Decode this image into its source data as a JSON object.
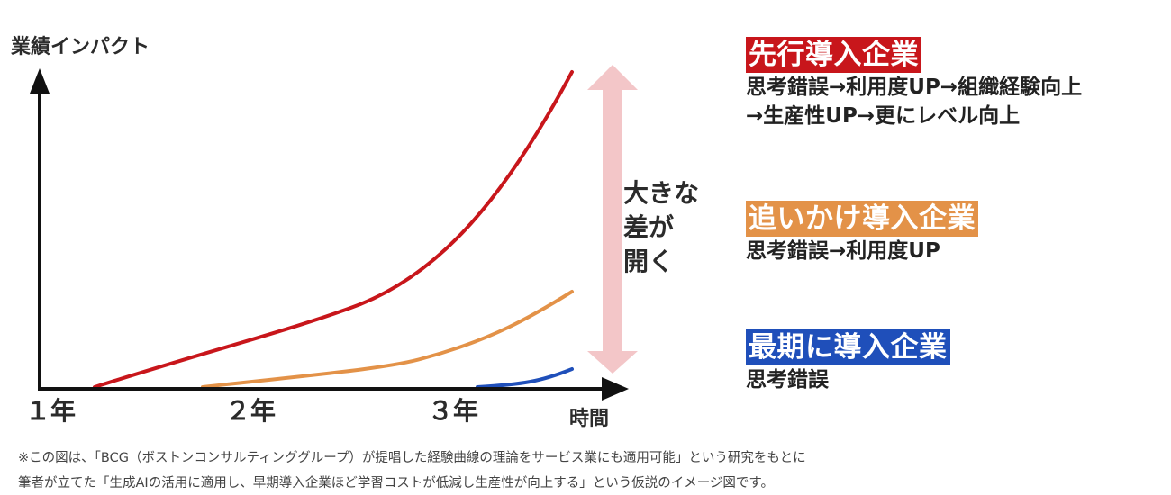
{
  "axis": {
    "y_label": "業績インパクト",
    "x_label": "時間",
    "x_ticks": [
      "１年",
      "２年",
      "３年"
    ]
  },
  "gap_label": [
    "大きな",
    "差が",
    "開く"
  ],
  "colors": {
    "leader": "#c8161b",
    "follower": "#e39248",
    "laggard": "#1f4fba",
    "gap_arrow": "#f3c6c8",
    "axis": "#111111"
  },
  "curves": [
    {
      "id": "leader",
      "color": "#c8161b"
    },
    {
      "id": "follower",
      "color": "#e39248"
    },
    {
      "id": "laggard",
      "color": "#1f4fba"
    }
  ],
  "legend": {
    "leader": {
      "title": "先行導入企業",
      "lines": [
        "思考錯誤→利用度UP→組織経験向上",
        "→生産性UP→更にレベル向上"
      ]
    },
    "follower": {
      "title": "追いかけ導入企業",
      "lines": [
        "思考錯誤→利用度UP"
      ]
    },
    "laggard": {
      "title": "最期に導入企業",
      "lines": [
        "思考錯誤"
      ]
    }
  },
  "footnote": [
    "※この図は、「BCG（ボストンコンサルティンググループ）が提唱した経験曲線の理論をサービス業にも適用可能」という研究をもとに",
    "筆者が立てた「生成AIの活用に適用し、早期導入企業ほど学習コストが低減し生産性が向上する」という仮説のイメージ図です。"
  ]
}
